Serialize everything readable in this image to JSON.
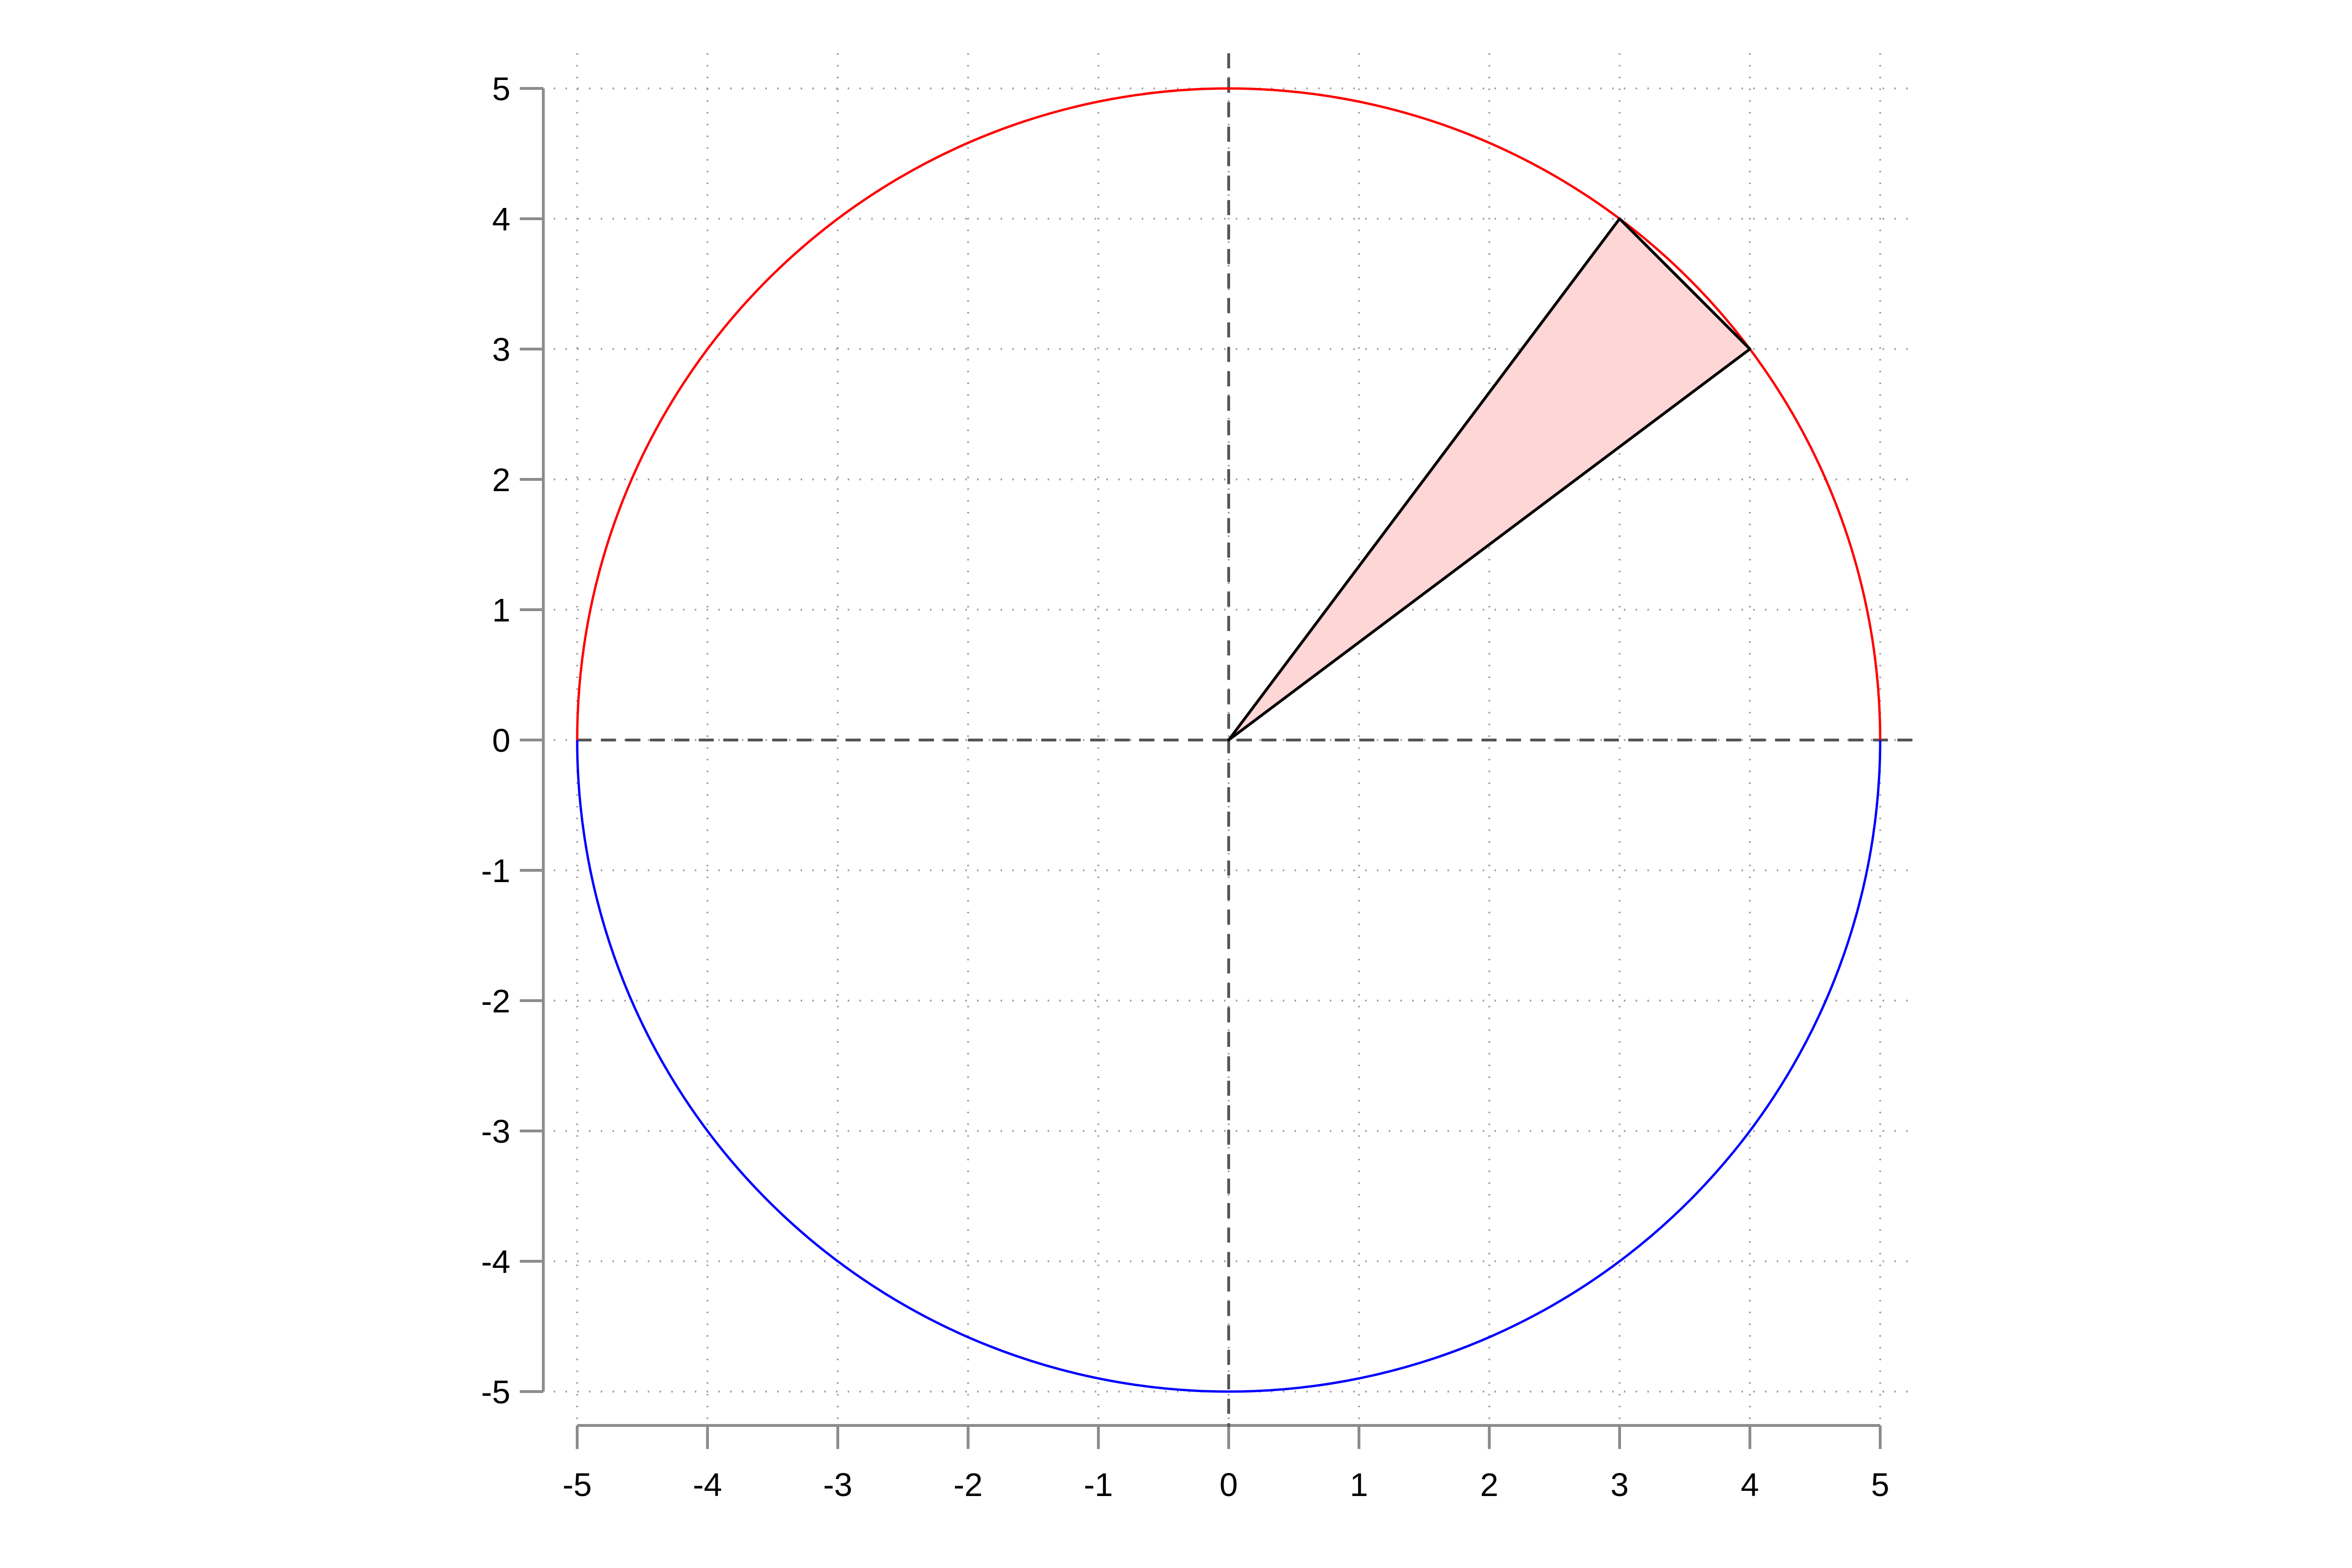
{
  "chart_data": {
    "type": "line",
    "title": "",
    "xlabel": "",
    "ylabel": "",
    "xlim": [
      -5,
      5
    ],
    "ylim": [
      -5,
      5
    ],
    "x_ticks": [
      -5,
      -4,
      -3,
      -2,
      -1,
      0,
      1,
      2,
      3,
      4,
      5
    ],
    "y_ticks": [
      -5,
      -4,
      -3,
      -2,
      -1,
      0,
      1,
      2,
      3,
      4,
      5
    ],
    "x_tick_labels": [
      "-5",
      "-4",
      "-3",
      "-2",
      "-1",
      "0",
      "1",
      "2",
      "3",
      "4",
      "5"
    ],
    "y_tick_labels": [
      "-5",
      "-4",
      "-3",
      "-2",
      "-1",
      "0",
      "1",
      "2",
      "3",
      "4",
      "5"
    ],
    "grid": true,
    "reference_lines": [
      {
        "orientation": "horizontal",
        "value": 0,
        "style": "dashed"
      },
      {
        "orientation": "vertical",
        "value": 0,
        "style": "dashed"
      }
    ],
    "curves": [
      {
        "shape": "semicircle",
        "center": [
          0,
          0
        ],
        "radius": 5,
        "half": "upper",
        "color": "#ff0000"
      },
      {
        "shape": "semicircle",
        "center": [
          0,
          0
        ],
        "radius": 5,
        "half": "lower",
        "color": "#0000ff"
      }
    ],
    "polygon": {
      "vertices": [
        [
          0,
          0
        ],
        [
          3,
          4
        ],
        [
          4,
          3
        ]
      ],
      "fill": "#ffd6d6",
      "stroke": "#000000"
    }
  }
}
